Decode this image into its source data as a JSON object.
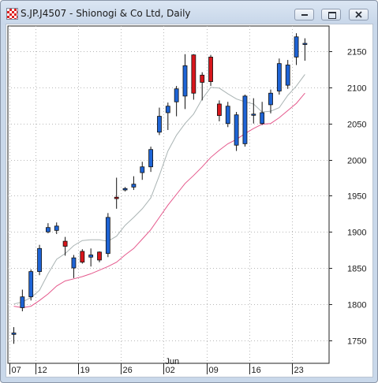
{
  "window": {
    "title": "S.JP.J4507 - Shionogi & Co Ltd, Daily",
    "icons": [
      "chart-app-icon",
      "minimize-icon",
      "restore-icon",
      "close-icon"
    ]
  },
  "chart_data": {
    "type": "candlestick",
    "title": "S.JP.J4507 - Shionogi & Co Ltd, Daily",
    "ylim": [
      1718,
      2185
    ],
    "y_ticks": [
      1750,
      1800,
      1850,
      1900,
      1950,
      2000,
      2050,
      2100,
      2150
    ],
    "y_tick_labels": [
      "1750",
      "1800",
      "1850",
      "1900",
      "1950",
      "2000",
      "2050",
      "2100",
      "2150"
    ],
    "x_tick_labels": [
      {
        "label": "07",
        "bar": 0
      },
      {
        "label": "12",
        "bar": 3
      },
      {
        "label": "19",
        "bar": 8
      },
      {
        "label": "26",
        "bar": 13
      },
      {
        "label": "02",
        "bar": 18
      },
      {
        "label": "09",
        "bar": 23
      },
      {
        "label": "16",
        "bar": 28
      },
      {
        "label": "23",
        "bar": 33
      }
    ],
    "month_label": {
      "label": "Jun",
      "bar": 18
    },
    "grid": true,
    "colors": {
      "up": "#1e64d6",
      "down": "#d8161c",
      "ma_short": "#aab4b4",
      "ma_long": "#e5588c"
    },
    "candles": [
      {
        "o": 1758,
        "h": 1768,
        "l": 1745,
        "c": 1760
      },
      {
        "o": 1795,
        "h": 1820,
        "l": 1790,
        "c": 1810
      },
      {
        "o": 1810,
        "h": 1848,
        "l": 1805,
        "c": 1845
      },
      {
        "o": 1845,
        "h": 1882,
        "l": 1840,
        "c": 1877
      },
      {
        "o": 1900,
        "h": 1912,
        "l": 1898,
        "c": 1906
      },
      {
        "o": 1902,
        "h": 1913,
        "l": 1897,
        "c": 1908
      },
      {
        "o": 1887,
        "h": 1893,
        "l": 1867,
        "c": 1880
      },
      {
        "o": 1850,
        "h": 1868,
        "l": 1836,
        "c": 1864
      },
      {
        "o": 1873,
        "h": 1876,
        "l": 1856,
        "c": 1858
      },
      {
        "o": 1865,
        "h": 1877,
        "l": 1852,
        "c": 1868
      },
      {
        "o": 1872,
        "h": 1873,
        "l": 1858,
        "c": 1861
      },
      {
        "o": 1870,
        "h": 1926,
        "l": 1865,
        "c": 1920
      },
      {
        "o": 1948,
        "h": 1975,
        "l": 1932,
        "c": 1946
      },
      {
        "o": 1958,
        "h": 1962,
        "l": 1956,
        "c": 1960
      },
      {
        "o": 1962,
        "h": 1977,
        "l": 1958,
        "c": 1966
      },
      {
        "o": 1982,
        "h": 1997,
        "l": 1972,
        "c": 1990
      },
      {
        "o": 1990,
        "h": 2018,
        "l": 1983,
        "c": 2014
      },
      {
        "o": 2038,
        "h": 2072,
        "l": 2034,
        "c": 2060
      },
      {
        "o": 2065,
        "h": 2079,
        "l": 2041,
        "c": 2074
      },
      {
        "o": 2080,
        "h": 2102,
        "l": 2060,
        "c": 2098
      },
      {
        "o": 2088,
        "h": 2146,
        "l": 2070,
        "c": 2130
      },
      {
        "o": 2145,
        "h": 2146,
        "l": 2083,
        "c": 2092
      },
      {
        "o": 2117,
        "h": 2121,
        "l": 2082,
        "c": 2107
      },
      {
        "o": 2142,
        "h": 2145,
        "l": 2102,
        "c": 2108
      },
      {
        "o": 2077,
        "h": 2082,
        "l": 2053,
        "c": 2061
      },
      {
        "o": 2050,
        "h": 2080,
        "l": 2045,
        "c": 2074
      },
      {
        "o": 2020,
        "h": 2066,
        "l": 2012,
        "c": 2062
      },
      {
        "o": 2022,
        "h": 2090,
        "l": 2018,
        "c": 2088
      },
      {
        "o": 2062,
        "h": 2085,
        "l": 2050,
        "c": 2063
      },
      {
        "o": 2050,
        "h": 2080,
        "l": 2048,
        "c": 2065
      },
      {
        "o": 2076,
        "h": 2097,
        "l": 2064,
        "c": 2092
      },
      {
        "o": 2095,
        "h": 2140,
        "l": 2090,
        "c": 2133
      },
      {
        "o": 2103,
        "h": 2138,
        "l": 2098,
        "c": 2131
      },
      {
        "o": 2142,
        "h": 2175,
        "l": 2131,
        "c": 2170
      },
      {
        "o": 2161,
        "h": 2168,
        "l": 2137,
        "c": 2161
      }
    ],
    "ma_short": [
      1800,
      1803,
      1809,
      1819,
      1842,
      1862,
      1870,
      1881,
      1888,
      1889,
      1889,
      1887,
      1894,
      1909,
      1920,
      1932,
      1947,
      1978,
      2012,
      2034,
      2050,
      2063,
      2084,
      2100,
      2099,
      2091,
      2084,
      2080,
      2077,
      2066,
      2067,
      2072,
      2089,
      2102,
      2118
    ],
    "ma_long": [
      1797,
      1795,
      1797,
      1805,
      1814,
      1825,
      1832,
      1835,
      1838,
      1842,
      1847,
      1852,
      1858,
      1868,
      1877,
      1890,
      1903,
      1920,
      1937,
      1952,
      1967,
      1978,
      1990,
      2003,
      2013,
      2022,
      2028,
      2036,
      2043,
      2049,
      2050,
      2058,
      2068,
      2078,
      2092
    ]
  }
}
